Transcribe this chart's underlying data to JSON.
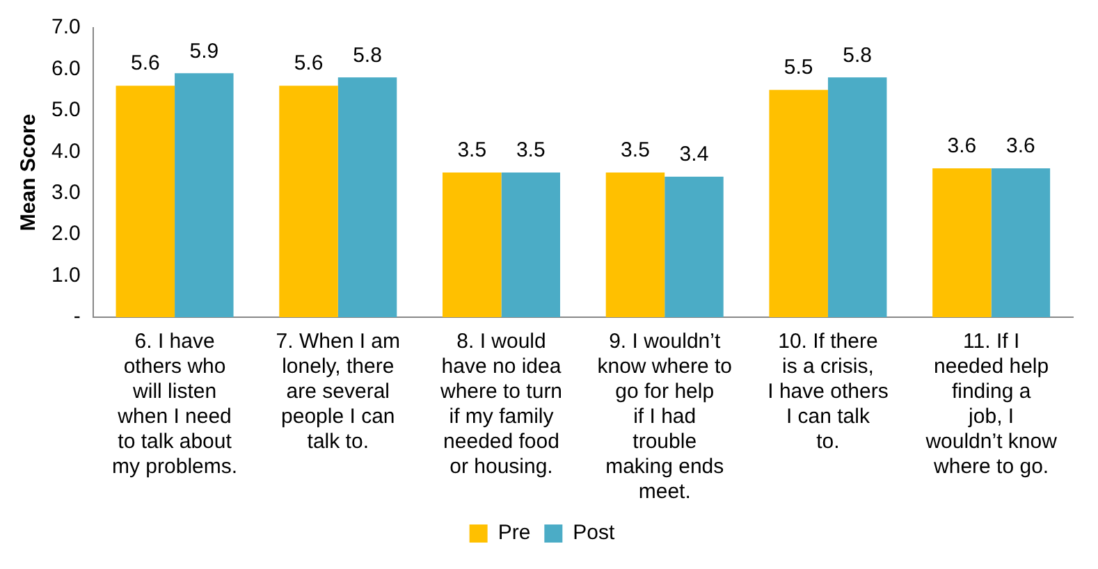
{
  "chart_data": {
    "type": "bar",
    "ylabel": "Mean Score",
    "categories": [
      "6. I have others who will listen when I need to talk about my problems.",
      "7. When I am lonely, there are several people I can talk to.",
      "8. I would have no idea where to turn if my family needed food or housing.",
      "9. I wouldn’t know where to go for help if I had trouble making ends meet.",
      "10. If there is a crisis, I have others I can talk to.",
      "11. If I needed help finding a job, I wouldn’t know where to go."
    ],
    "series": [
      {
        "name": "Pre",
        "color": "#ffc000",
        "values": [
          5.6,
          5.6,
          3.5,
          3.5,
          5.5,
          3.6
        ]
      },
      {
        "name": "Post",
        "color": "#4bacc6",
        "values": [
          5.9,
          5.8,
          3.5,
          3.4,
          5.8,
          3.6
        ]
      }
    ],
    "ylim": [
      0,
      7
    ],
    "yticks": [
      {
        "value": 0,
        "label": "-"
      },
      {
        "value": 1,
        "label": "1.0"
      },
      {
        "value": 2,
        "label": "2.0"
      },
      {
        "value": 3,
        "label": "3.0"
      },
      {
        "value": 4,
        "label": "4.0"
      },
      {
        "value": 5,
        "label": "5.0"
      },
      {
        "value": 6,
        "label": "6.0"
      },
      {
        "value": 7,
        "label": "7.0"
      }
    ],
    "data_labels": true,
    "legend": "bottom",
    "grid": false
  }
}
